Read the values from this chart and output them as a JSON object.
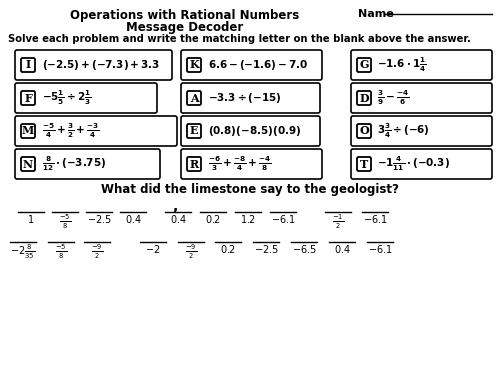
{
  "title_line1": "Operations with Rational Numbers",
  "title_line2": "Message Decoder",
  "name_label": "Name",
  "instruction": "Solve each problem and write the matching letter on the blank above the answer.",
  "bg_color": "#ffffff"
}
